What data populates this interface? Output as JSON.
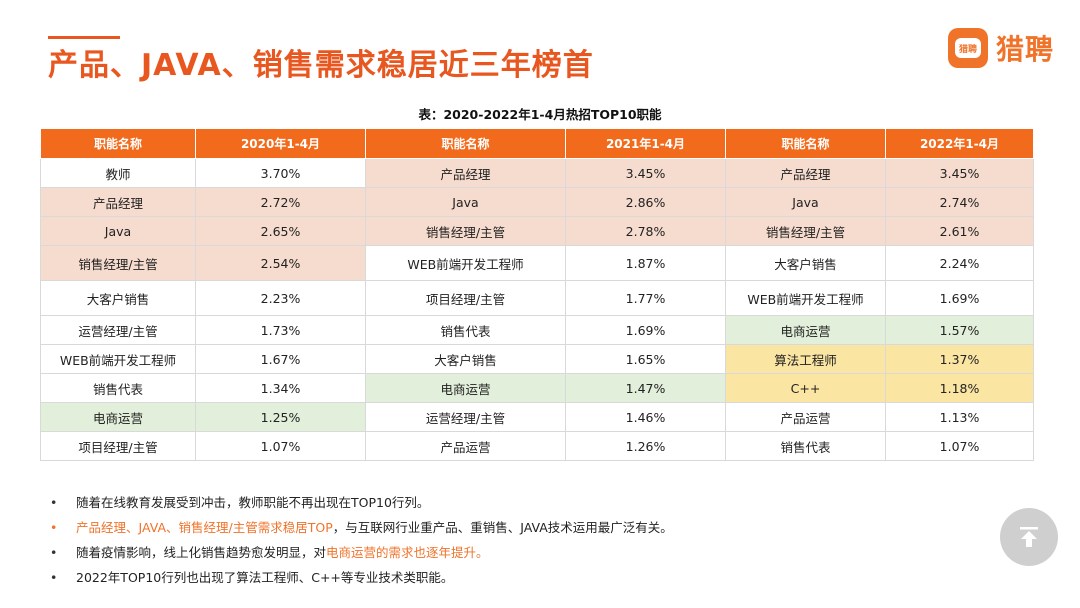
{
  "header": {
    "title": "产品、JAVA、销售需求稳居近三年榜首",
    "logo_text": "猎聘",
    "logo_badge": "猎聘"
  },
  "table": {
    "caption": "表：2020-2022年1-4月热招TOP10职能",
    "headers": [
      "职能名称",
      "2020年1-4月",
      "职能名称",
      "2021年1-4月",
      "职能名称",
      "2022年1-4月"
    ],
    "rows": [
      [
        "教师",
        "3.70%",
        "产品经理",
        "3.45%",
        "产品经理",
        "3.45%"
      ],
      [
        "产品经理",
        "2.72%",
        "Java",
        "2.86%",
        "Java",
        "2.74%"
      ],
      [
        "Java",
        "2.65%",
        "销售经理/主管",
        "2.78%",
        "销售经理/主管",
        "2.61%"
      ],
      [
        "销售经理/主管",
        "2.54%",
        "WEB前端开发工程师",
        "1.87%",
        "大客户销售",
        "2.24%"
      ],
      [
        "大客户销售",
        "2.23%",
        "项目经理/主管",
        "1.77%",
        "WEB前端开发工程师",
        "1.69%"
      ],
      [
        "运营经理/主管",
        "1.73%",
        "销售代表",
        "1.69%",
        "电商运营",
        "1.57%"
      ],
      [
        "WEB前端开发工程师",
        "1.67%",
        "大客户销售",
        "1.65%",
        "算法工程师",
        "1.37%"
      ],
      [
        "销售代表",
        "1.34%",
        "电商运营",
        "1.47%",
        "C++",
        "1.18%"
      ],
      [
        "电商运营",
        "1.25%",
        "运营经理/主管",
        "1.46%",
        "产品运营",
        "1.13%"
      ],
      [
        "项目经理/主管",
        "1.07%",
        "产品运营",
        "1.26%",
        "销售代表",
        "1.07%"
      ]
    ],
    "highlight_colors": {
      "pink": "#f6dccf",
      "green": "#e2efdb",
      "yellow": "#fbe5a2"
    }
  },
  "notes": [
    [
      {
        "text": "随着在线教育发展受到冲击，教师职能不再出现在TOP10行列。",
        "style": "normal"
      }
    ],
    [
      {
        "text": "产品经理、JAVA、销售经理/主管需求稳居TOP",
        "style": "orange"
      },
      {
        "text": "，与互联网行业重产品、重销售、JAVA技术运用最广泛有关。",
        "style": "normal"
      }
    ],
    [
      {
        "text": "随着疫情影响，线上化销售趋势愈发明显，对",
        "style": "normal"
      },
      {
        "text": "电商运营的需求也逐年提升。",
        "style": "orange"
      }
    ],
    [
      {
        "text": "2022年TOP10行列也出现了算法工程师、C++等专业技术类职能。",
        "style": "normal"
      }
    ]
  ],
  "icons": {
    "scroll_top": "arrow-up-icon"
  },
  "colors": {
    "accent": "#f26a1b"
  }
}
